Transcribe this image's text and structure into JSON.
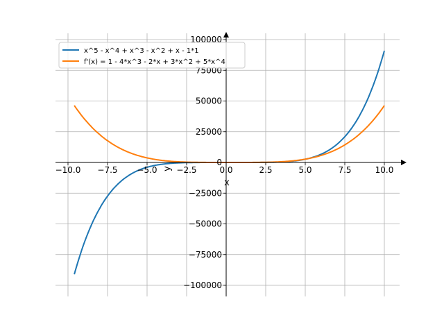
{
  "chart_data": {
    "type": "line",
    "title": "",
    "xlabel": "x",
    "ylabel": "y",
    "xlim": [
      -11,
      11
    ],
    "ylim": [
      -110000,
      110000
    ],
    "grid": true,
    "legend_position": "top-left",
    "x_ticks": [
      -10,
      -7.5,
      -5,
      -2.5,
      0,
      2.5,
      5,
      7.5,
      10
    ],
    "x_tick_labels": [
      "−10.0",
      "−7.5",
      "−5.0",
      "−2.5",
      "0.0",
      "2.5",
      "5.0",
      "7.5",
      "10.0"
    ],
    "y_ticks": [
      -100000,
      -75000,
      -50000,
      -25000,
      0,
      25000,
      50000,
      75000,
      100000
    ],
    "y_tick_labels": [
      "−100000",
      "−75000",
      "−50000",
      "−25000",
      "0",
      "25000",
      "50000",
      "75000",
      "100000"
    ],
    "series": [
      {
        "name": "x^5 - x^4 + x^3 - x^2 + x - 1*1",
        "color": "#1f77b4",
        "x_range": [
          -9.6,
          10
        ],
        "coefficients_high_to_low": [
          1,
          -1,
          1,
          -1,
          1,
          -1
        ]
      },
      {
        "name": "f'(x) = 1 - 4*x^3 - 2*x + 3*x^2 + 5*x^4",
        "color": "#ff7f0e",
        "x_range": [
          -9.6,
          10
        ],
        "coefficients_high_to_low": [
          5,
          -4,
          3,
          -2,
          1
        ]
      }
    ]
  }
}
